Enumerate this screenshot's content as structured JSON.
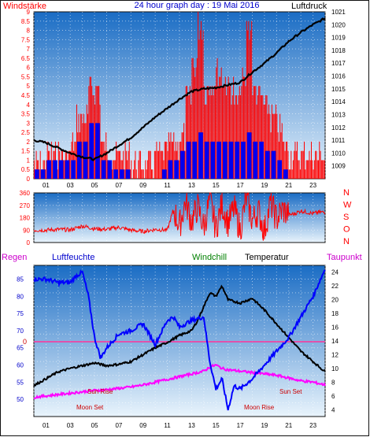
{
  "header": {
    "left_label": "Windstärke",
    "title": "24 hour graph day : 19 Mai 2016",
    "right_label": "Luftdruck"
  },
  "labels": {
    "regen": "Regen",
    "luftfeuchte": "Luftfeuchte",
    "windchill": "Windchill",
    "temperatur": "Temperatur",
    "taupunkt": "Taupunkt",
    "sun_rise": "Sun Rise",
    "sun_set": "Sun Set",
    "moon_set": "Moon Set",
    "moon_rise": "Moon Rise",
    "regen_zero": "0"
  },
  "colors": {
    "frame": "#111111",
    "bg_top": "#1a6cc4",
    "bg_bottom": "#e9f4fc",
    "wind_red": "#ff0000",
    "wind_blue": "#0000ee",
    "pressure": "#000000",
    "humidity": "#0000ff",
    "temperature": "#000000",
    "dewpoint": "#ff00ff",
    "rain_line": "#ff3399",
    "label_red": "#ff0000",
    "label_blue": "#0000cc",
    "label_green": "#008000",
    "label_magenta": "#cc00cc",
    "annotation": "#cc0000"
  },
  "chart_data": [
    {
      "type": "bar",
      "name": "wind-and-pressure",
      "x_ticks": [
        "01",
        "03",
        "05",
        "07",
        "09",
        "11",
        "13",
        "15",
        "17",
        "19",
        "21",
        "23"
      ],
      "x_range": [
        0,
        24
      ],
      "y_left": {
        "label": "Windstärke",
        "ylim": [
          0,
          9
        ],
        "ticks": [
          "0",
          "0.5",
          "1",
          "1.5",
          "2",
          "2.5",
          "3",
          "3.5",
          "4",
          "4.5",
          "5",
          "5.5",
          "6",
          "6.5",
          "7",
          "7.5",
          "8",
          "8.5",
          "9"
        ]
      },
      "y_right": {
        "label": "Luftdruck",
        "ylim": [
          1008,
          1021
        ],
        "ticks": [
          "1009",
          "1010",
          "1011",
          "1012",
          "1013",
          "1014",
          "1015",
          "1016",
          "1017",
          "1018",
          "1019",
          "1020",
          "1021"
        ]
      },
      "gust_max": {
        "hours": [
          0.0,
          0.5,
          1.0,
          1.5,
          2.0,
          2.5,
          3.0,
          3.5,
          4.0,
          4.5,
          5.0,
          5.5,
          6.0,
          6.5,
          7.0,
          7.5,
          8.0,
          8.5,
          9.0,
          9.5,
          10.0,
          10.5,
          11.0,
          11.5,
          12.0,
          12.5,
          13.0,
          13.5,
          14.0,
          14.5,
          15.0,
          15.5,
          16.0,
          16.5,
          17.0,
          17.5,
          18.0,
          18.5,
          19.0,
          19.5,
          20.0,
          20.5,
          21.0,
          21.5,
          22.0,
          22.5,
          23.0,
          23.5
        ],
        "values": [
          1.5,
          1.5,
          2.0,
          2.0,
          2.0,
          2.0,
          2.5,
          4.0,
          4.0,
          5.5,
          5.5,
          2.5,
          2.0,
          2.0,
          2.0,
          2.0,
          1.5,
          1.5,
          1.5,
          1.5,
          2.0,
          2.0,
          2.5,
          2.5,
          3.0,
          5.0,
          7.0,
          9.0,
          5.5,
          6.0,
          6.5,
          6.0,
          5.5,
          5.0,
          6.0,
          9.0,
          5.5,
          5.0,
          4.5,
          4.0,
          3.5,
          2.5,
          2.0,
          2.0,
          2.0,
          2.0,
          2.0,
          2.0
        ]
      },
      "wind_avg": {
        "hours": [
          0.0,
          0.5,
          1.0,
          1.5,
          2.0,
          2.5,
          3.0,
          3.5,
          4.0,
          4.5,
          5.0,
          5.5,
          6.0,
          6.5,
          7.0,
          7.5,
          8.0,
          8.5,
          9.0,
          9.5,
          10.0,
          10.5,
          11.0,
          11.5,
          12.0,
          12.5,
          13.0,
          13.5,
          14.0,
          14.5,
          15.0,
          15.5,
          16.0,
          16.5,
          17.0,
          17.5,
          18.0,
          18.5,
          19.0,
          19.5,
          20.0,
          20.5,
          21.0,
          21.5,
          22.0,
          22.5,
          23.0,
          23.5
        ],
        "values": [
          0.5,
          0.5,
          1.0,
          1.0,
          1.0,
          1.0,
          1.0,
          2.0,
          2.0,
          3.0,
          3.0,
          1.0,
          1.0,
          0.5,
          0.5,
          0.5,
          0.0,
          0.0,
          0.0,
          0.0,
          0.0,
          0.5,
          1.0,
          1.0,
          1.5,
          2.0,
          2.0,
          2.5,
          2.0,
          2.0,
          2.0,
          2.0,
          2.0,
          2.0,
          2.0,
          2.5,
          2.0,
          2.0,
          1.5,
          1.5,
          1.0,
          0.5,
          0.0,
          0.0,
          0.0,
          0.0,
          0.0,
          0.0
        ]
      },
      "pressure": {
        "hours": [
          0,
          1,
          2,
          3,
          4,
          5,
          6,
          7,
          8,
          9,
          10,
          11,
          12,
          13,
          14,
          15,
          16,
          17,
          18,
          19,
          20,
          21,
          22,
          23,
          24
        ],
        "values": [
          1011.0,
          1010.8,
          1010.4,
          1010.0,
          1009.7,
          1009.5,
          1010.0,
          1010.6,
          1011.2,
          1012.0,
          1012.8,
          1013.5,
          1014.2,
          1014.8,
          1015.0,
          1015.1,
          1015.3,
          1015.5,
          1016.3,
          1017.0,
          1017.8,
          1018.7,
          1019.4,
          1020.0,
          1020.5
        ]
      }
    },
    {
      "type": "line",
      "name": "wind-direction",
      "x_range": [
        0,
        24
      ],
      "y_left": {
        "ylim": [
          0,
          360
        ],
        "ticks": [
          "0",
          "90",
          "180",
          "270",
          "360"
        ]
      },
      "y_right": {
        "ticks": [
          "N",
          "W",
          "S",
          "O",
          "N"
        ]
      },
      "series": [
        {
          "hours": [
            0,
            1,
            2,
            3,
            4,
            5,
            6,
            7,
            8,
            9,
            10,
            11,
            11.5,
            12,
            12.5,
            13,
            13.5,
            14,
            14.5,
            15,
            15.5,
            16,
            16.5,
            17,
            17.5,
            18,
            18.5,
            19,
            19.5,
            20,
            20.5,
            21,
            21.5,
            22,
            22.5,
            23,
            23.5
          ],
          "values": [
            90,
            90,
            95,
            92,
            120,
            100,
            95,
            110,
            90,
            80,
            95,
            90,
            240,
            120,
            300,
            150,
            260,
            110,
            310,
            100,
            280,
            140,
            250,
            90,
            320,
            160,
            230,
            80,
            290,
            170,
            240,
            200,
            210,
            230,
            220,
            210,
            220
          ]
        }
      ]
    },
    {
      "type": "line",
      "name": "humidity-temperature",
      "x_range": [
        0,
        24
      ],
      "y_left": {
        "label": "Luftfeuchte",
        "ylim": [
          45,
          89
        ],
        "ticks": [
          "50",
          "55",
          "60",
          "65",
          "70",
          "75",
          "80",
          "85"
        ]
      },
      "y_right": {
        "label": "Temperatur",
        "ylim": [
          3,
          25
        ],
        "ticks": [
          "4",
          "6",
          "8",
          "10",
          "12",
          "14",
          "16",
          "18",
          "20",
          "22",
          "24"
        ]
      },
      "series": [
        {
          "name": "Luftfeuchte",
          "hours": [
            0,
            1,
            2,
            3,
            3.5,
            4,
            4.5,
            5,
            5.5,
            6,
            7,
            8,
            9,
            10,
            11,
            11.5,
            12,
            13,
            14,
            14.5,
            15,
            15.5,
            16,
            16.5,
            17,
            18,
            19,
            20,
            21,
            22,
            23,
            24
          ],
          "values": [
            85,
            85,
            84,
            84,
            86,
            87,
            80,
            68,
            62,
            65,
            69,
            70,
            72,
            66,
            73,
            74,
            71,
            73,
            74,
            61,
            53,
            56,
            47,
            54,
            53,
            56,
            60,
            64,
            68,
            74,
            80,
            88
          ]
        },
        {
          "name": "Temperatur",
          "hours": [
            0,
            1,
            2,
            3,
            4,
            5,
            6,
            7,
            8,
            9,
            10,
            11,
            12,
            13,
            13.5,
            14,
            14.5,
            15,
            15.5,
            16,
            17,
            18,
            19,
            20,
            21,
            22,
            23,
            24
          ],
          "values": [
            7.5,
            8.5,
            9.5,
            10.0,
            10.4,
            10.8,
            10.4,
            10.6,
            11.0,
            12.0,
            13.0,
            13.8,
            14.8,
            15.5,
            17.0,
            19.0,
            21.0,
            20.5,
            22.0,
            20.0,
            19.5,
            20.2,
            18.5,
            16.5,
            14.5,
            12.5,
            11.0,
            9.5
          ]
        },
        {
          "name": "Taupunkt",
          "hours": [
            0,
            1,
            2,
            3,
            4,
            5,
            6,
            7,
            8,
            9,
            10,
            11,
            12,
            13,
            14,
            14.5,
            15,
            15.5,
            16,
            17,
            18,
            19,
            20,
            21,
            22,
            23,
            24
          ],
          "values": [
            5.8,
            6.0,
            6.2,
            6.4,
            6.6,
            6.8,
            6.9,
            7.1,
            7.3,
            7.6,
            8.0,
            8.4,
            8.8,
            9.2,
            9.6,
            10.2,
            10.5,
            10.0,
            9.8,
            9.6,
            9.4,
            9.2,
            9.0,
            8.6,
            8.2,
            8.0,
            7.6
          ]
        }
      ],
      "rain_zero_level": 0,
      "annotations": [
        "Sun Rise",
        "Sun Set",
        "Moon Set",
        "Moon Rise"
      ]
    }
  ]
}
